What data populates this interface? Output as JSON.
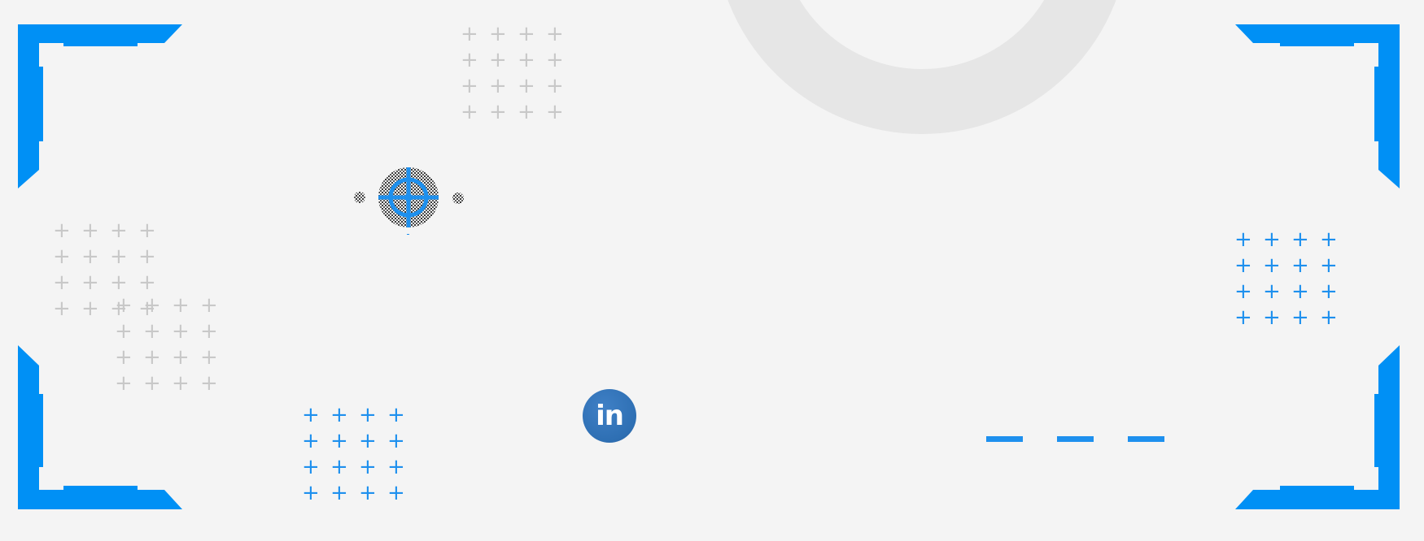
{
  "colors": {
    "accent": "#0090f5",
    "background": "#f4f4f4",
    "ring": "#e6e6e6",
    "plus_gray": "#c8c8c8",
    "linkedin": "#2e6fb3"
  },
  "icons": {
    "linkedin": "linkedin-icon",
    "target": "crosshair-target-icon",
    "plus": "plus-icon"
  },
  "social": {
    "linkedin_label": "in"
  },
  "plus_glyph": "+"
}
